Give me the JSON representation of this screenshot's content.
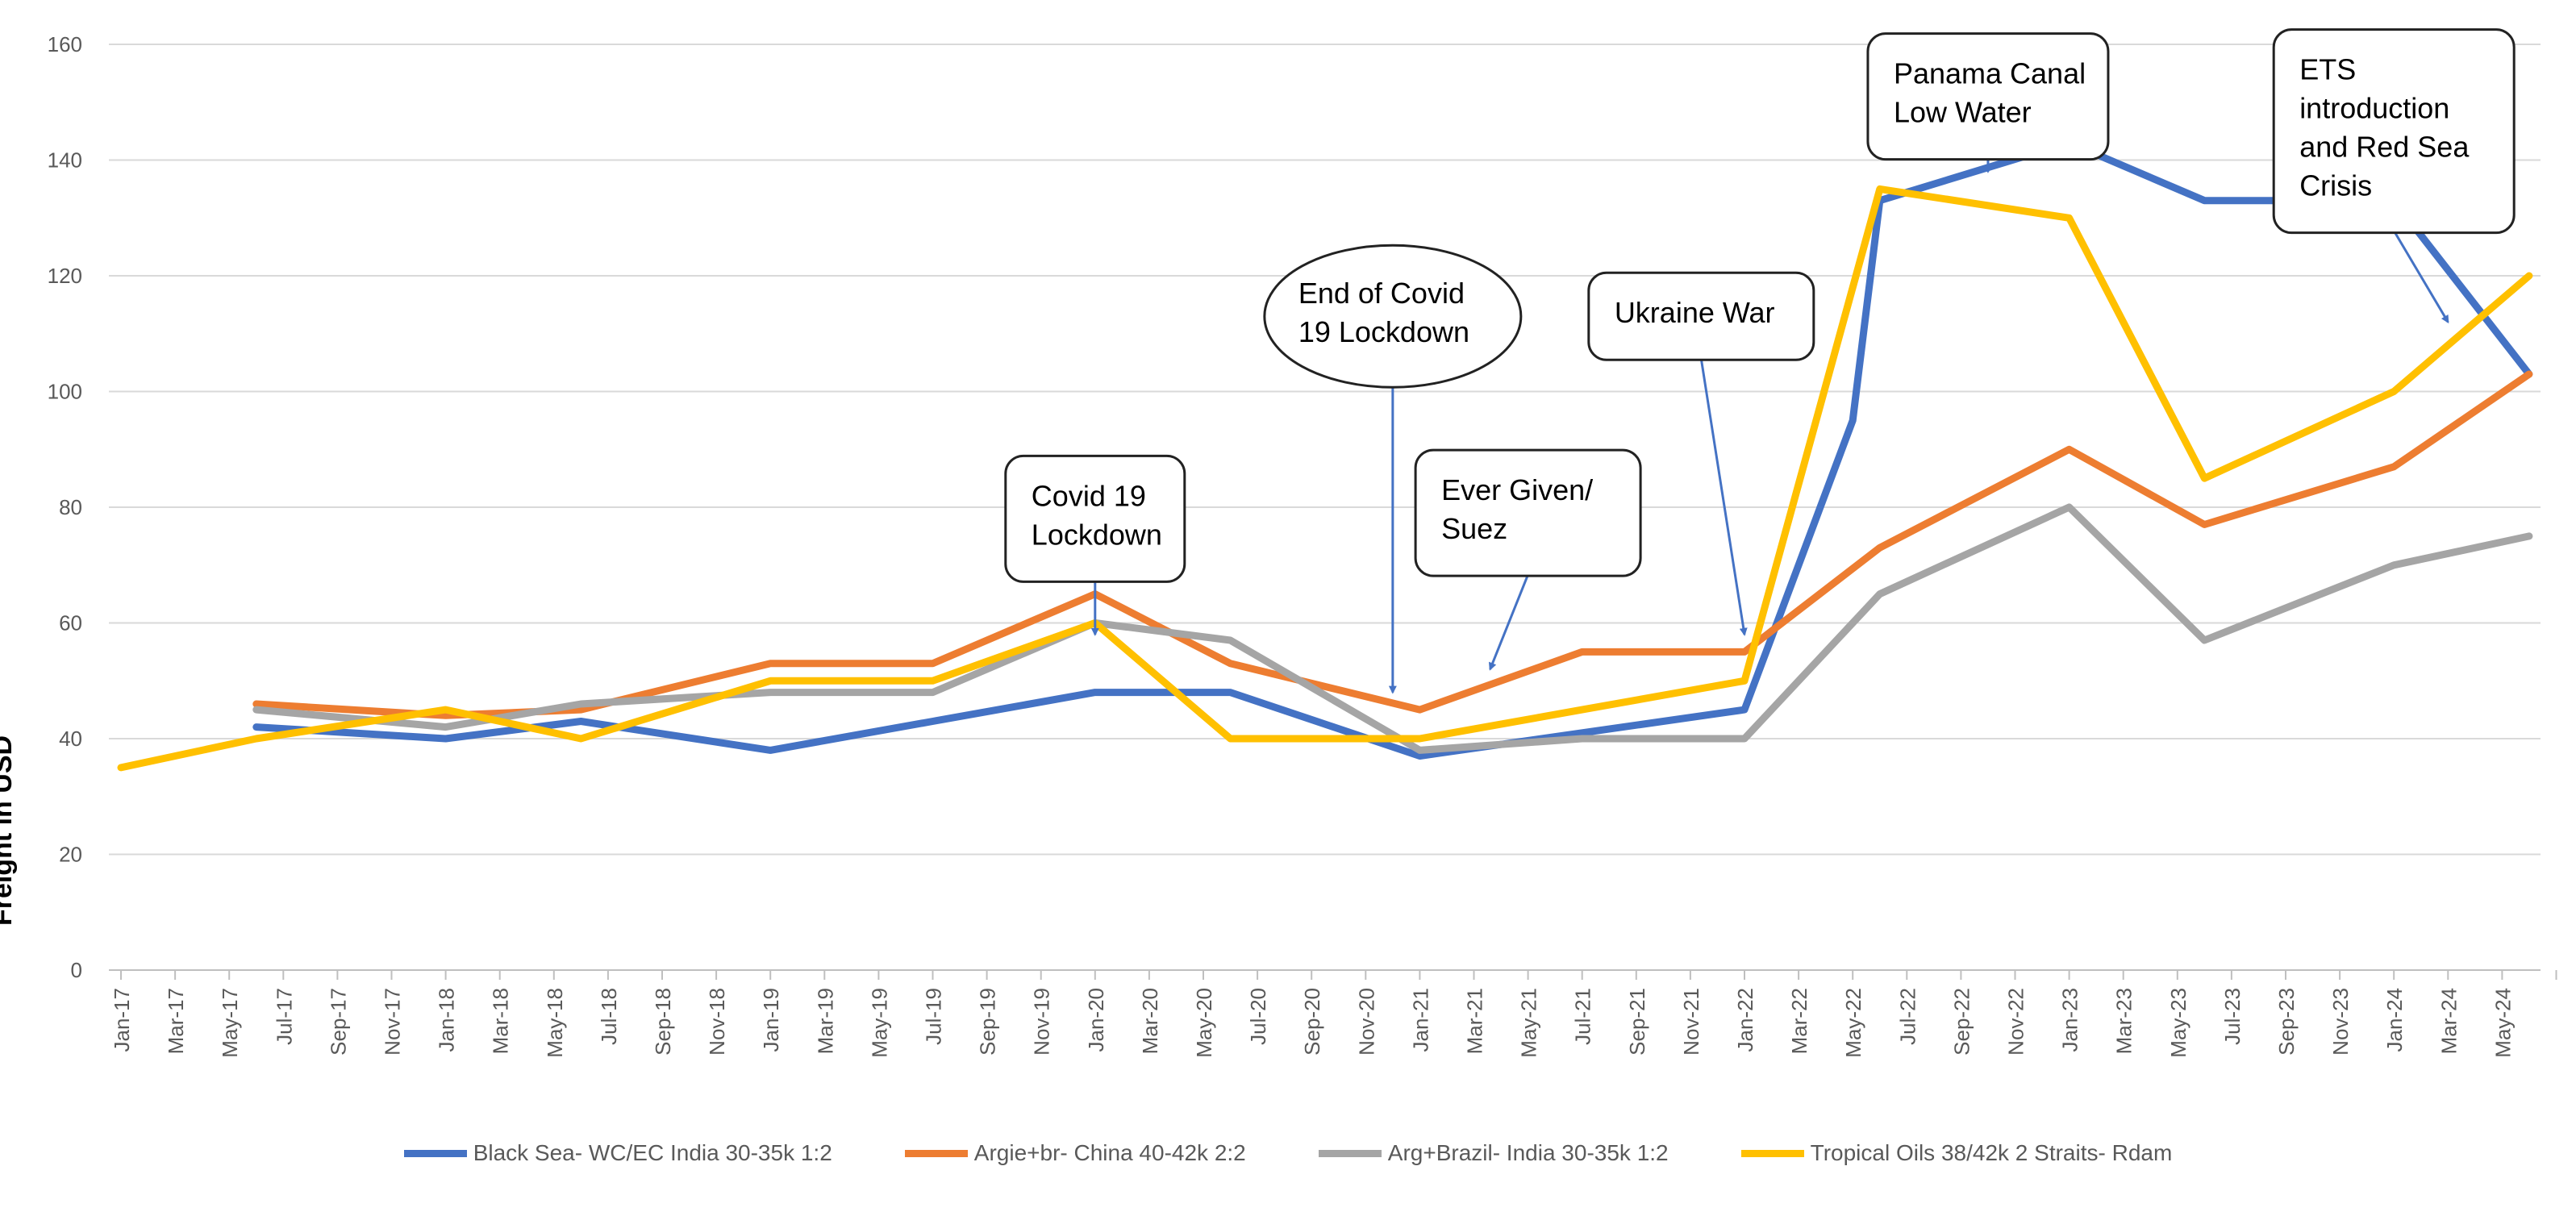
{
  "chart_data": {
    "type": "line",
    "ylabel": "Freight in USD",
    "ylim": [
      0,
      160
    ],
    "yticks": [
      0,
      20,
      40,
      60,
      80,
      100,
      120,
      140,
      160
    ],
    "grid": true,
    "legend_position": "bottom",
    "x": [
      "Jan-17",
      "Mar-17",
      "May-17",
      "Jul-17",
      "Sep-17",
      "Nov-17",
      "Jan-18",
      "Mar-18",
      "May-18",
      "Jul-18",
      "Sep-18",
      "Nov-18",
      "Jan-19",
      "Mar-19",
      "May-19",
      "Jul-19",
      "Sep-19",
      "Nov-19",
      "Jan-20",
      "Mar-20",
      "May-20",
      "Jul-20",
      "Sep-20",
      "Nov-20",
      "Jan-21",
      "Mar-21",
      "May-21",
      "Jul-21",
      "Sep-21",
      "Nov-21",
      "Jan-22",
      "Mar-22",
      "May-22",
      "Jul-22",
      "Sep-22",
      "Nov-22",
      "Jan-23",
      "Mar-23",
      "May-23",
      "Jul-23",
      "Sep-23",
      "Nov-23",
      "Jan-24",
      "Mar-24",
      "May-24"
    ],
    "x_last_index": 44.5,
    "series": [
      {
        "name": "Black Sea- WC/EC India 30-35k 1:2",
        "color": "#4472C4",
        "points": [
          [
            2.5,
            42
          ],
          [
            6,
            40
          ],
          [
            8.5,
            43
          ],
          [
            12,
            38
          ],
          [
            15,
            43
          ],
          [
            18,
            48
          ],
          [
            20.5,
            48
          ],
          [
            24,
            37
          ],
          [
            27,
            41
          ],
          [
            30,
            45
          ],
          [
            32,
            95
          ],
          [
            32.5,
            133
          ],
          [
            36,
            143
          ],
          [
            38.5,
            133
          ],
          [
            42,
            133
          ],
          [
            44.5,
            103
          ]
        ]
      },
      {
        "name": "Argie+br- China 40-42k 2:2",
        "color": "#ED7D31",
        "points": [
          [
            2.5,
            46
          ],
          [
            6,
            44
          ],
          [
            8.5,
            45
          ],
          [
            12,
            53
          ],
          [
            15,
            53
          ],
          [
            18,
            65
          ],
          [
            20.5,
            53
          ],
          [
            24,
            45
          ],
          [
            27,
            55
          ],
          [
            30,
            55
          ],
          [
            32.5,
            73
          ],
          [
            36,
            90
          ],
          [
            38.5,
            77
          ],
          [
            42,
            87
          ],
          [
            44.5,
            103
          ]
        ]
      },
      {
        "name": "Arg+Brazil- India 30-35k 1:2",
        "color": "#A5A5A5",
        "points": [
          [
            2.5,
            45
          ],
          [
            6,
            42
          ],
          [
            8.5,
            46
          ],
          [
            12,
            48
          ],
          [
            15,
            48
          ],
          [
            18,
            60
          ],
          [
            20.5,
            57
          ],
          [
            24,
            38
          ],
          [
            27,
            40
          ],
          [
            30,
            40
          ],
          [
            32.5,
            65
          ],
          [
            36,
            80
          ],
          [
            38.5,
            57
          ],
          [
            42,
            70
          ],
          [
            44.5,
            75
          ]
        ]
      },
      {
        "name": "Tropical Oils 38/42k 2 Straits- Rdam",
        "color": "#FFC000",
        "points": [
          [
            0,
            35
          ],
          [
            2.5,
            40
          ],
          [
            6,
            45
          ],
          [
            8.5,
            40
          ],
          [
            12,
            50
          ],
          [
            15,
            50
          ],
          [
            18,
            60
          ],
          [
            20.5,
            40
          ],
          [
            24,
            40
          ],
          [
            27,
            45
          ],
          [
            30,
            50
          ],
          [
            32.5,
            135
          ],
          [
            36,
            130
          ],
          [
            38.5,
            85
          ],
          [
            42,
            100
          ],
          [
            44.5,
            120
          ]
        ]
      }
    ],
    "annotations": [
      {
        "lines": [
          "Covid 19",
          "Lockdown"
        ],
        "shape": "rounded-rect",
        "x": 18,
        "y": 78,
        "arrow_to": [
          18,
          58
        ]
      },
      {
        "lines": [
          "End of Covid",
          "19 Lockdown"
        ],
        "shape": "ellipse",
        "x": 23.5,
        "y": 113,
        "arrow_to": [
          23.5,
          48
        ]
      },
      {
        "lines": [
          "Ever Given/",
          "Suez"
        ],
        "shape": "rounded-rect",
        "x": 26,
        "y": 79,
        "arrow_to": [
          25.3,
          52
        ]
      },
      {
        "lines": [
          "Ukraine War"
        ],
        "shape": "rounded-rect",
        "x": 29.2,
        "y": 113,
        "arrow_to": [
          30,
          58
        ]
      },
      {
        "lines": [
          "Panama Canal",
          "Low Water"
        ],
        "shape": "rounded-rect",
        "x": 34.5,
        "y": 151,
        "arrow_to": [
          34.5,
          138
        ]
      },
      {
        "lines": [
          "ETS",
          "introduction",
          "and Red Sea",
          "Crisis"
        ],
        "shape": "rounded-rect",
        "x": 42,
        "y": 145,
        "arrow_to": [
          43,
          112
        ]
      }
    ]
  }
}
